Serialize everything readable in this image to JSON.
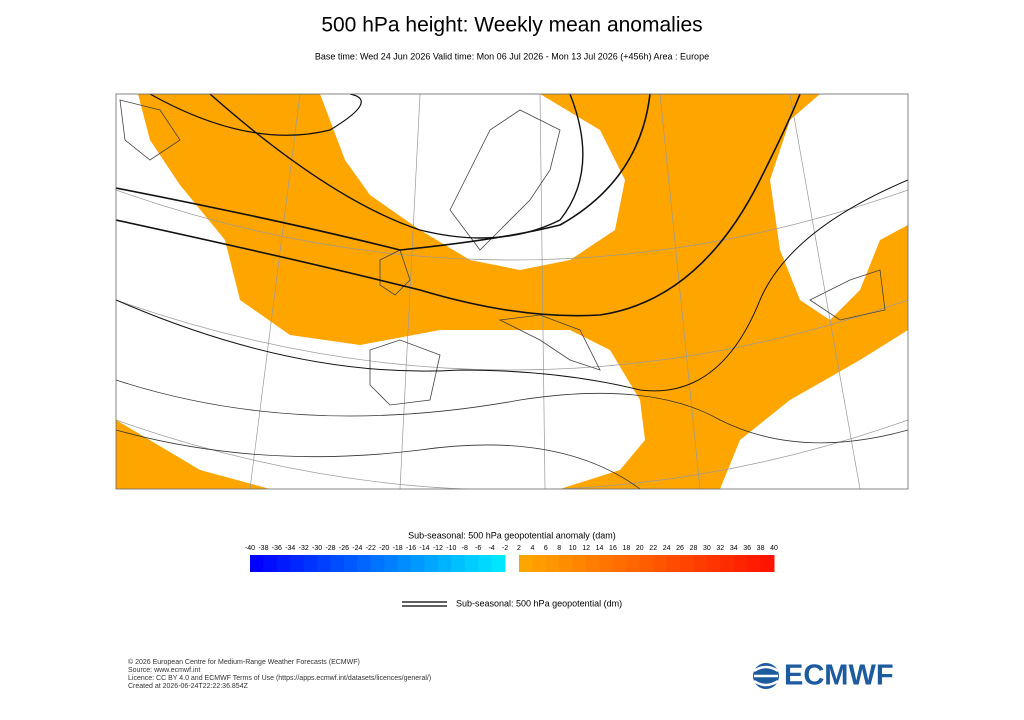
{
  "header": {
    "title": "500 hPa height: Weekly mean anomalies",
    "subtitle": "Base time: Wed 24 Jun 2026 Valid time: Mon 06 Jul 2026 - Mon 13 Jul 2026 (+456h) Area : Europe"
  },
  "colorbar": {
    "title": "Sub-seasonal: 500 hPa geopotential anomaly (dam)",
    "ticks_negative": [
      -40,
      -38,
      -36,
      -34,
      -32,
      -30,
      -28,
      -26,
      -24,
      -22,
      -20,
      -18,
      -16,
      -14,
      -12,
      -10,
      -8,
      -6,
      -4,
      -2
    ],
    "ticks_positive": [
      2,
      4,
      6,
      8,
      10,
      12,
      14,
      16,
      18,
      20,
      22,
      24,
      26,
      28,
      30,
      32,
      34,
      36,
      38,
      40
    ]
  },
  "legend": {
    "label": "Sub-seasonal: 500 hPa geopotential (dm)"
  },
  "footer": {
    "lines": [
      "© 2026 European Centre for Medium-Range Weather Forecasts (ECMWF)",
      "Source: www.ecmwf.int",
      "Licence: CC BY 4.0 and ECMWF Terms of Use (https://apps.ecmwf.int/datasets/licences/general/)",
      "Created at 2026-06-24T22:22:36.854Z"
    ],
    "logo": "ECMWF"
  }
}
